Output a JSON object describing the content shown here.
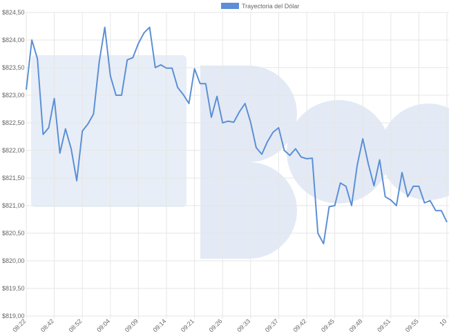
{
  "chart_data": {
    "type": "line",
    "legend": "top",
    "grid": true,
    "series": [
      {
        "name": "Trayectoria del Dólar",
        "color": "#5b8fd6",
        "values": [
          823.1,
          824.0,
          823.66,
          822.29,
          822.41,
          822.94,
          821.95,
          822.39,
          822.03,
          821.45,
          822.35,
          822.48,
          822.66,
          823.6,
          824.23,
          823.35,
          823.0,
          823.0,
          823.64,
          823.68,
          823.94,
          824.13,
          824.23,
          823.5,
          823.55,
          823.49,
          823.49,
          823.14,
          823.01,
          822.85,
          823.48,
          823.21,
          823.21,
          822.6,
          822.98,
          822.5,
          822.53,
          822.51,
          822.7,
          822.85,
          822.51,
          822.05,
          821.93,
          822.16,
          822.33,
          822.41,
          822.0,
          821.91,
          822.03,
          821.88,
          821.85,
          821.86,
          820.5,
          820.31,
          820.98,
          821.0,
          821.41,
          821.35,
          821.0,
          821.73,
          822.21,
          821.75,
          821.36,
          821.83,
          821.16,
          821.1,
          821.0,
          821.6,
          821.16,
          821.35,
          821.35,
          821.05,
          821.09,
          820.91,
          820.91,
          820.7
        ]
      }
    ],
    "categories": [
      "08:22",
      null,
      null,
      null,
      null,
      "08:42",
      null,
      null,
      null,
      null,
      "08:52",
      null,
      null,
      null,
      null,
      "09:04",
      null,
      null,
      null,
      null,
      "09:09",
      null,
      null,
      null,
      null,
      "09:14",
      null,
      null,
      null,
      null,
      "09:21",
      null,
      null,
      null,
      null,
      "09:26",
      null,
      null,
      null,
      null,
      "09:33",
      null,
      null,
      null,
      null,
      "09:37",
      null,
      null,
      null,
      null,
      "09:42",
      null,
      null,
      null,
      null,
      "09:45",
      null,
      null,
      null,
      null,
      "09:48",
      null,
      null,
      null,
      null,
      "09:51",
      null,
      null,
      null,
      null,
      "09:55",
      null,
      null,
      null,
      null,
      "10"
    ],
    "ylim": [
      819,
      824.5
    ],
    "yticks": [
      {
        "value": 819,
        "label": "$819,00"
      },
      {
        "value": 819.5,
        "label": "$819,50"
      },
      {
        "value": 820,
        "label": "$820,00"
      },
      {
        "value": 820.5,
        "label": "$820,50"
      },
      {
        "value": 821,
        "label": "$821,00"
      },
      {
        "value": 821.5,
        "label": "$821,50"
      },
      {
        "value": 822,
        "label": "$822,00"
      },
      {
        "value": 822.5,
        "label": "$822,50"
      },
      {
        "value": 823,
        "label": "$823,00"
      },
      {
        "value": 823.5,
        "label": "$823,50"
      },
      {
        "value": 824,
        "label": "$824,00"
      },
      {
        "value": 824.5,
        "label": "$824,50"
      }
    ]
  }
}
